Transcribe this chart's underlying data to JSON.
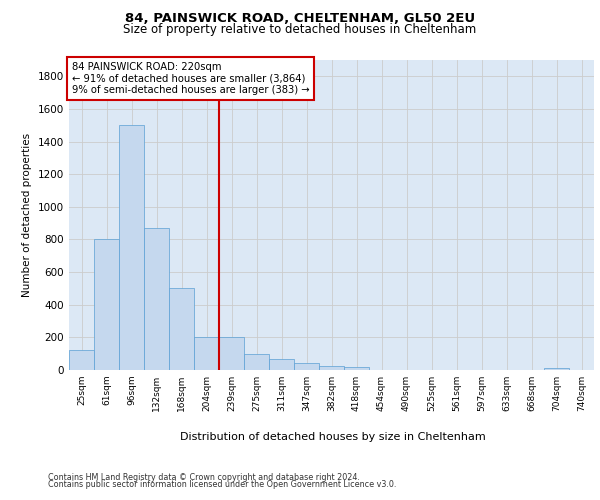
{
  "title1": "84, PAINSWICK ROAD, CHELTENHAM, GL50 2EU",
  "title2": "Size of property relative to detached houses in Cheltenham",
  "xlabel": "Distribution of detached houses by size in Cheltenham",
  "ylabel": "Number of detached properties",
  "categories": [
    "25sqm",
    "61sqm",
    "96sqm",
    "132sqm",
    "168sqm",
    "204sqm",
    "239sqm",
    "275sqm",
    "311sqm",
    "347sqm",
    "382sqm",
    "418sqm",
    "454sqm",
    "490sqm",
    "525sqm",
    "561sqm",
    "597sqm",
    "633sqm",
    "668sqm",
    "704sqm",
    "740sqm"
  ],
  "values": [
    120,
    800,
    1500,
    870,
    500,
    205,
    205,
    100,
    65,
    45,
    25,
    20,
    0,
    0,
    0,
    0,
    0,
    0,
    0,
    10,
    0
  ],
  "bar_color": "#c5d8ee",
  "bar_edge_color": "#5a9fd4",
  "vline_x_index": 6,
  "annotation_title": "84 PAINSWICK ROAD: 220sqm",
  "annotation_line1": "← 91% of detached houses are smaller (3,864)",
  "annotation_line2": "9% of semi-detached houses are larger (383) →",
  "annotation_box_color": "#ffffff",
  "annotation_box_edge": "#cc0000",
  "vline_color": "#cc0000",
  "ylim": [
    0,
    1900
  ],
  "yticks": [
    0,
    200,
    400,
    600,
    800,
    1000,
    1200,
    1400,
    1600,
    1800
  ],
  "grid_color": "#cccccc",
  "background_color": "#dce8f5",
  "footer1": "Contains HM Land Registry data © Crown copyright and database right 2024.",
  "footer2": "Contains public sector information licensed under the Open Government Licence v3.0."
}
